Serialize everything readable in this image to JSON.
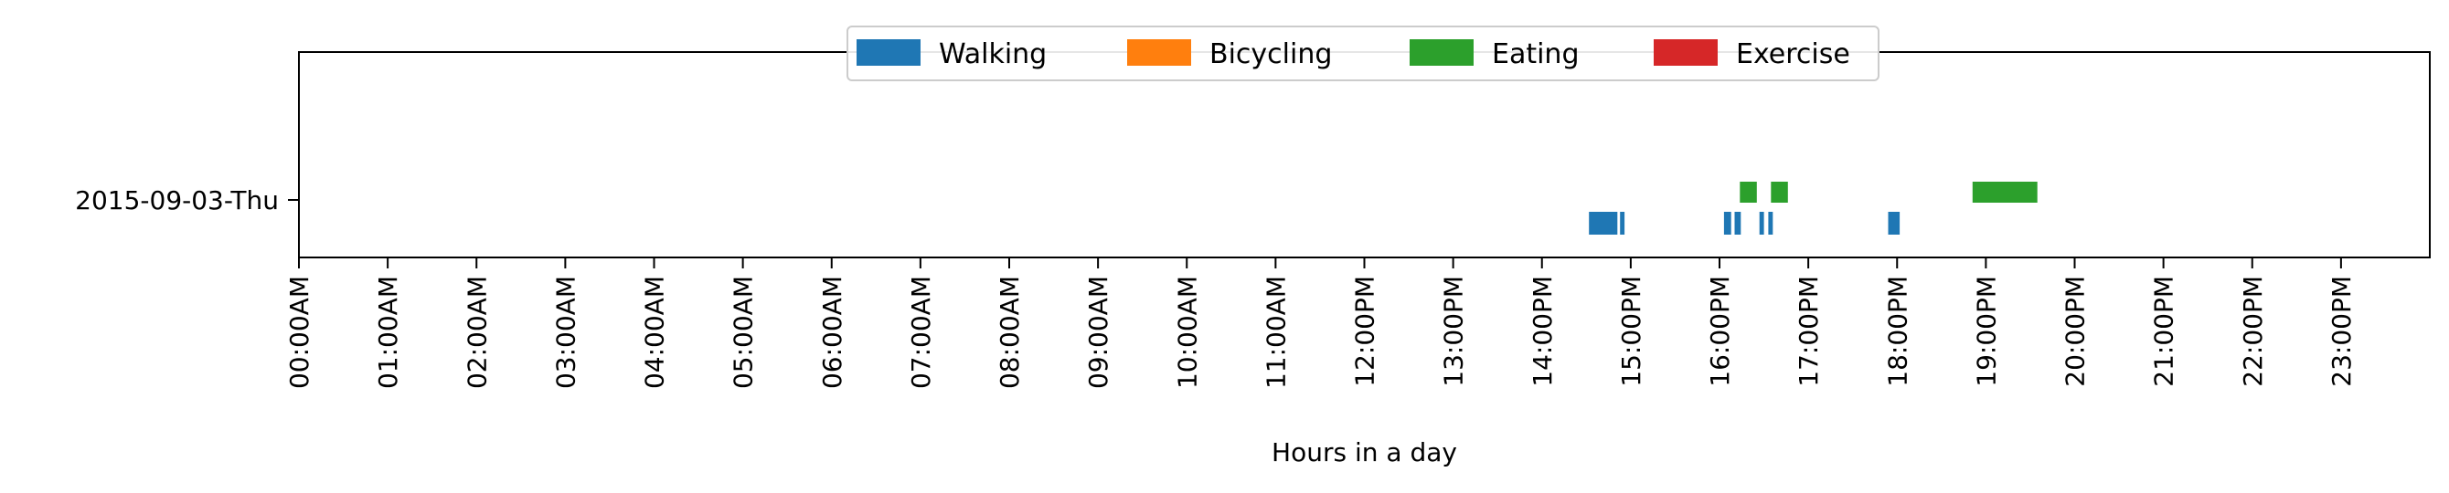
{
  "chart_data": {
    "type": "timeline",
    "title": "",
    "xlabel": "Hours in a day",
    "ylabel": "",
    "xlim_hours": [
      0,
      24
    ],
    "x_ticks": [
      "00:00AM",
      "01:00AM",
      "02:00AM",
      "03:00AM",
      "04:00AM",
      "05:00AM",
      "06:00AM",
      "07:00AM",
      "08:00AM",
      "09:00AM",
      "10:00AM",
      "11:00AM",
      "12:00PM",
      "13:00PM",
      "14:00PM",
      "15:00PM",
      "16:00PM",
      "17:00PM",
      "18:00PM",
      "19:00PM",
      "20:00PM",
      "21:00PM",
      "22:00PM",
      "23:00PM"
    ],
    "rows": [
      "2015-09-03-Thu"
    ],
    "legend_placement": "top-center",
    "grid": false,
    "series": [
      {
        "name": "Walking",
        "color": "#1f77b4",
        "lane": "lower",
        "intervals": [
          [
            14.53,
            14.85
          ],
          [
            14.88,
            14.93
          ],
          [
            16.05,
            16.13
          ],
          [
            16.17,
            16.24
          ],
          [
            16.45,
            16.5
          ],
          [
            16.55,
            16.6
          ],
          [
            17.9,
            18.03
          ]
        ]
      },
      {
        "name": "Bicycling",
        "color": "#ff7f0e",
        "lane": "upper",
        "intervals": []
      },
      {
        "name": "Eating",
        "color": "#2ca02c",
        "lane": "upper",
        "intervals": [
          [
            16.23,
            16.42
          ],
          [
            16.58,
            16.77
          ],
          [
            18.85,
            19.58
          ]
        ]
      },
      {
        "name": "Exercise",
        "color": "#d62728",
        "lane": "upper",
        "intervals": []
      }
    ]
  }
}
